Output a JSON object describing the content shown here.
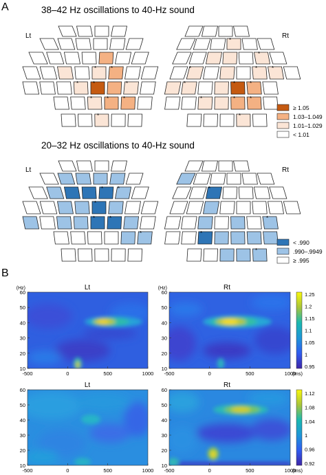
{
  "colors": {
    "orange_high": "#c55a11",
    "orange_mid": "#f4b183",
    "orange_low": "#fbe5d6",
    "blue_high": "#2e75b6",
    "blue_mid": "#9dc3e6",
    "none": "#ffffff"
  },
  "panel_a": {
    "label": "A",
    "top": {
      "title": "38–42 Hz oscillations to 40-Hz sound",
      "left_label": "Lt",
      "right_label": "Rt",
      "legend": [
        "≥ 1.05",
        "1.03–1.049",
        "1.01–1.029",
        "< 1.01"
      ]
    },
    "bottom": {
      "title": "20–32 Hz oscillations to 40-Hz sound",
      "left_label": "Lt",
      "right_label": "Rt",
      "legend": [
        "< .990",
        ".990–.9949",
        "≥ .995"
      ]
    }
  },
  "panel_b": {
    "label": "B",
    "top_left_title": "Lt",
    "top_right_title": "Rt",
    "bottom_left_title": "Lt",
    "bottom_right_title": "Rt",
    "y_unit": "(Hz)",
    "x_unit": "(ms)",
    "y_ticks": [
      "60",
      "50",
      "40",
      "30",
      "20",
      "10"
    ],
    "x_ticks": [
      "-500",
      "0",
      "500",
      "1000"
    ],
    "colorbar_top": [
      "1.25",
      "1.2",
      "1.15",
      "1.1",
      "1.05",
      "1",
      "0.95"
    ],
    "colorbar_bottom": [
      "1.12",
      "1.08",
      "1.04",
      "1",
      "0.96",
      "0.92"
    ]
  }
}
